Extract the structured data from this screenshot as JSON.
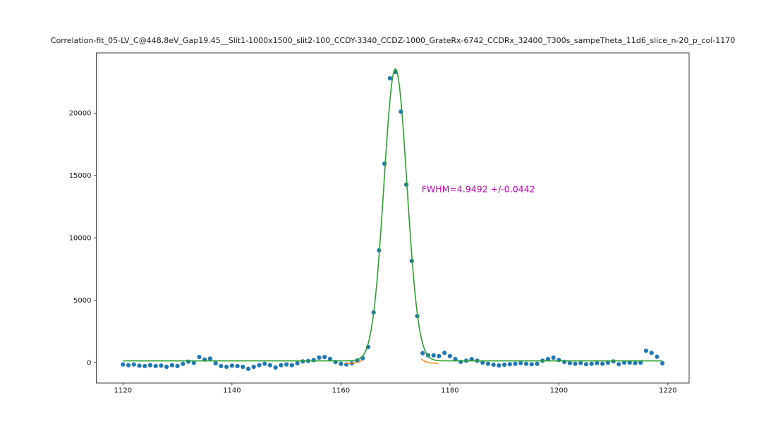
{
  "figure": {
    "background": "#ffffff",
    "frame_color": "#262626",
    "text_color": "#1a1a1a"
  },
  "chart_data": {
    "type": "scatter",
    "title": "Correlation-fit_05-LV_C@448.8eV_Gap19.45__Slit1-1000x1500_slit2-100_CCDY-3340_CCDZ-1000_GrateRx-6742_CCDRx_32400_T300s_sampeTheta_11d6_slice_n-20_p_col-1170",
    "xlabel": "",
    "ylabel": "",
    "xlim": [
      1115.1,
      1223.9
    ],
    "ylim": [
      -1640,
      24830
    ],
    "x_ticks": [
      1120,
      1140,
      1160,
      1180,
      1200,
      1220
    ],
    "y_ticks": [
      0,
      5000,
      10000,
      15000,
      20000
    ],
    "grid": false,
    "legend": null,
    "series": [
      {
        "name": "measured-points",
        "type": "scatter",
        "color": "#1f77b4",
        "marker_radius": 3.1,
        "x": [
          1120,
          1121,
          1122,
          1123,
          1124,
          1125,
          1126,
          1127,
          1128,
          1129,
          1130,
          1131,
          1132,
          1133,
          1134,
          1135,
          1136,
          1137,
          1138,
          1139,
          1140,
          1141,
          1142,
          1143,
          1144,
          1145,
          1146,
          1147,
          1148,
          1149,
          1150,
          1151,
          1152,
          1153,
          1154,
          1155,
          1156,
          1157,
          1158,
          1159,
          1160,
          1161,
          1162,
          1163,
          1164,
          1165,
          1166,
          1167,
          1168,
          1169,
          1170,
          1171,
          1172,
          1173,
          1174,
          1175,
          1176,
          1177,
          1178,
          1179,
          1180,
          1181,
          1182,
          1183,
          1184,
          1185,
          1186,
          1187,
          1188,
          1189,
          1190,
          1191,
          1192,
          1193,
          1194,
          1195,
          1196,
          1197,
          1198,
          1199,
          1200,
          1201,
          1202,
          1203,
          1204,
          1205,
          1206,
          1207,
          1208,
          1209,
          1210,
          1211,
          1212,
          1213,
          1214,
          1215,
          1216,
          1217,
          1218,
          1219
        ],
        "y": [
          -150,
          -210,
          -150,
          -245,
          -280,
          -210,
          -280,
          -245,
          -340,
          -210,
          -280,
          -100,
          75,
          -20,
          450,
          245,
          320,
          -55,
          -280,
          -340,
          -245,
          -280,
          -340,
          -500,
          -340,
          -210,
          -95,
          -210,
          -395,
          -210,
          -150,
          -210,
          -60,
          95,
          130,
          200,
          400,
          450,
          300,
          50,
          -100,
          -150,
          -60,
          170,
          350,
          1245,
          4020,
          9000,
          15950,
          22800,
          23300,
          20120,
          14270,
          8150,
          3730,
          750,
          580,
          580,
          520,
          780,
          520,
          280,
          60,
          150,
          280,
          150,
          0,
          -95,
          -170,
          -230,
          -170,
          -130,
          -95,
          -40,
          -95,
          -130,
          -95,
          150,
          280,
          395,
          210,
          57,
          -40,
          -95,
          -40,
          -130,
          -95,
          -40,
          -95,
          0,
          95,
          -130,
          0,
          0,
          -40,
          0,
          950,
          780,
          470,
          -60
        ]
      },
      {
        "name": "gaussian-fit",
        "type": "line",
        "color": "#2ca02c",
        "width": 1.6,
        "gaussian": {
          "center": 1170.0,
          "fwhm": 4.9492,
          "amplitude": 23420,
          "baseline": 140
        },
        "x_start": 1120,
        "x_end": 1219
      },
      {
        "name": "secondary-fit-remnant",
        "type": "segments",
        "color": "#ff7f0e",
        "width": 1.4,
        "segments": [
          [
            [
              1160.8,
              -60
            ],
            [
              1162.0,
              -70
            ],
            [
              1163.2,
              30
            ],
            [
              1163.9,
              180
            ]
          ],
          [
            [
              1174.8,
              260
            ],
            [
              1175.6,
              60
            ],
            [
              1176.6,
              -40
            ],
            [
              1177.8,
              -60
            ]
          ]
        ]
      }
    ],
    "annotations": [
      {
        "text": "FWHM=4.9492 +/-0.0442",
        "x": 1174.8,
        "y": 13900,
        "color": "#c000c0",
        "font_size": 12.5
      }
    ]
  }
}
